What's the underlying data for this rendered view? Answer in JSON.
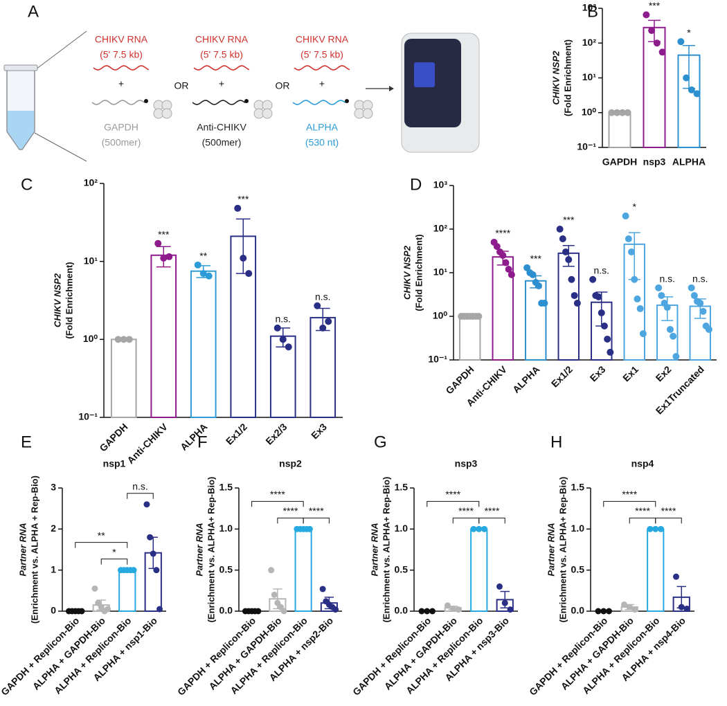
{
  "diagram": {
    "panel": "A",
    "separators": [
      "OR",
      "OR"
    ],
    "groups": [
      {
        "target": "CHIKV RNA",
        "target_size": "(5' 7.5 kb)",
        "target_color": "#d0312d",
        "plus": "+",
        "probe": "GAPDH",
        "probe_size": "(500mer)",
        "probe_color": "#9a9a9a"
      },
      {
        "target": "CHIKV RNA",
        "target_size": "(5' 7.5 kb)",
        "target_color": "#d0312d",
        "plus": "+",
        "probe": "Anti-CHIKV",
        "probe_size": "(500mer)",
        "probe_color": "#222222"
      },
      {
        "target": "CHIKV RNA",
        "target_size": "(5' 7.5 kb)",
        "target_color": "#d0312d",
        "plus": "+",
        "probe": "ALPHA",
        "probe_size": "(530 nt)",
        "probe_color": "#2b9bd8"
      }
    ]
  },
  "chart_data": [
    {
      "type": "bar",
      "panel": "B",
      "ylabel": [
        "CHIKV NSP2",
        "(Fold Enrichment)"
      ],
      "log_scale": true,
      "categories": [
        "GAPDH",
        "nsp3",
        "ALPHA"
      ],
      "values": [
        1,
        280,
        45
      ],
      "errors": [
        0,
        170,
        40
      ],
      "points": [
        [
          1,
          1,
          1,
          1
        ],
        [
          650,
          230,
          100,
          55
        ],
        [
          110,
          10,
          4.5,
          3.5
        ]
      ],
      "colors": [
        "#a6a6a6",
        "#8e1b8c",
        "#2c8fcf"
      ],
      "significance": [
        null,
        "***",
        "*"
      ],
      "ylim": [
        0.1,
        1000
      ],
      "yticks": [
        {
          "value": 0.1,
          "label": "10⁻¹"
        },
        {
          "value": 1,
          "label": "10⁰"
        },
        {
          "value": 10,
          "label": "10¹"
        },
        {
          "value": 100,
          "label": "10²"
        },
        {
          "value": 1000,
          "label": "10³"
        }
      ]
    },
    {
      "type": "bar",
      "panel": "C",
      "ylabel": [
        "CHIKV NSP2",
        "(Fold Enrichment)"
      ],
      "log_scale": true,
      "categories": [
        "GAPDH",
        "Anti-CHIKV",
        "ALPHA",
        "Ex1/2",
        "Ex2/3",
        "Ex3"
      ],
      "values": [
        1,
        12,
        7.5,
        21,
        1.1,
        1.9
      ],
      "errors": [
        0,
        3.5,
        1.3,
        14,
        0.3,
        0.6
      ],
      "points": [
        [
          1,
          1,
          1
        ],
        [
          17,
          11,
          11.5
        ],
        [
          9,
          7,
          6.5
        ],
        [
          48,
          11,
          7
        ],
        [
          1.4,
          1.0,
          0.8
        ],
        [
          2.7,
          1.4,
          1.7
        ]
      ],
      "colors": [
        "#a6a6a6",
        "#8e1b8c",
        "#2c9bd8",
        "#2a2f86",
        "#2a2f86",
        "#2a2f86"
      ],
      "significance": [
        null,
        "***",
        "**",
        "***",
        "n.s.",
        "n.s."
      ],
      "ylim": [
        0.1,
        100
      ],
      "yticks": [
        {
          "value": 0.1,
          "label": "10⁻¹"
        },
        {
          "value": 1,
          "label": "10⁰"
        },
        {
          "value": 10,
          "label": "10¹"
        },
        {
          "value": 100,
          "label": "10²"
        }
      ]
    },
    {
      "type": "bar",
      "panel": "D",
      "ylabel": [
        "CHIKV NSP2",
        "(Fold Enrichment)"
      ],
      "log_scale": true,
      "categories": [
        "GAPDH",
        "Anti-CHIKV",
        "ALPHA",
        "Ex1/2",
        "Ex3",
        "Ex1",
        "Ex2",
        "Ex1Truncated"
      ],
      "values": [
        1,
        23,
        6.5,
        28,
        2.1,
        45,
        1.8,
        1.7
      ],
      "errors": [
        0,
        8,
        2,
        14,
        1.5,
        38,
        1.0,
        0.8
      ],
      "points": [
        [
          1,
          1,
          1,
          1,
          1,
          1,
          1
        ],
        [
          50,
          40,
          30,
          25,
          17,
          12,
          9
        ],
        [
          13,
          10,
          9,
          6,
          5,
          2,
          2
        ],
        [
          100,
          60,
          30,
          20,
          7,
          3,
          2
        ],
        [
          7,
          3,
          2.8,
          1.2,
          0.6,
          0.3,
          0.15
        ],
        [
          200,
          60,
          30,
          7,
          2.5,
          1.5,
          0.4
        ],
        [
          4.5,
          3,
          2,
          1.6,
          0.5,
          0.35,
          0.12
        ],
        [
          4.5,
          3,
          2.2,
          2,
          1.3,
          0.6,
          0.5
        ]
      ],
      "colors": [
        "#a6a6a6",
        "#8e1b8c",
        "#2c8fcf",
        "#2a2f86",
        "#2a2f86",
        "#4ea6e0",
        "#4ea6e0",
        "#4ea6e0"
      ],
      "significance": [
        null,
        "****",
        "***",
        "***",
        "n.s.",
        "*",
        "n.s.",
        "n.s."
      ],
      "ylim": [
        0.1,
        1000
      ],
      "yticks": [
        {
          "value": 0.1,
          "label": "10⁻¹"
        },
        {
          "value": 1,
          "label": "10⁰"
        },
        {
          "value": 10,
          "label": "10¹"
        },
        {
          "value": 100,
          "label": "10²"
        },
        {
          "value": 1000,
          "label": "10³"
        }
      ]
    },
    {
      "type": "bar",
      "panel": "E",
      "title": "nsp1",
      "ylabel": [
        "Partner RNA",
        "(Enrichment vs. ALPHA + Rep-Bio)"
      ],
      "log_scale": false,
      "categories": [
        "GAPDH + Replicon-Bio",
        "ALPHA + GAPDH-Bio",
        "ALPHA + Replicon-Bio",
        "ALPHA + nsp1-Bio"
      ],
      "values": [
        0,
        0.15,
        1,
        1.42
      ],
      "errors": [
        0,
        0.12,
        0,
        0.38
      ],
      "points": [
        [
          0,
          0,
          0,
          0,
          0
        ],
        [
          0.55,
          0.2,
          0.1,
          0.0,
          0.05
        ],
        [
          1,
          1,
          1,
          1,
          1
        ],
        [
          2.6,
          1.8,
          1.4,
          1.0,
          0.05
        ]
      ],
      "colors": [
        "#111111",
        "#b5b5b5",
        "#26a9e0",
        "#2a2f86"
      ],
      "brackets": [
        {
          "from": "GAPDH + Replicon-Bio",
          "to": "ALPHA + Replicon-Bio",
          "label": "**"
        },
        {
          "from": "ALPHA + GAPDH-Bio",
          "to": "ALPHA + Replicon-Bio",
          "label": "*"
        },
        {
          "from": "ALPHA + Replicon-Bio",
          "to": "ALPHA + nsp1-Bio",
          "label": "n.s."
        }
      ],
      "ylim": [
        0,
        3
      ],
      "yticks": [
        0,
        1,
        2,
        3
      ]
    },
    {
      "type": "bar",
      "panel": "F",
      "title": "nsp2",
      "ylabel": [
        "Partner RNA",
        "(Enrichment vs. ALPHA+ Rep-Bio)"
      ],
      "log_scale": false,
      "categories": [
        "GAPDH + Replicon-Bio",
        "ALPHA + GAPDH-Bio",
        "ALPHA + Replicon-Bio",
        "ALPHA + nsp2-Bio"
      ],
      "values": [
        0,
        0.15,
        1,
        0.1
      ],
      "errors": [
        0,
        0.12,
        0,
        0.07
      ],
      "points": [
        [
          0,
          0,
          0,
          0,
          0
        ],
        [
          0.5,
          0.2,
          0.1,
          0.05,
          0.0
        ],
        [
          1,
          1,
          1,
          1,
          1
        ],
        [
          0.27,
          0.12,
          0.08,
          0.05,
          0.02
        ]
      ],
      "colors": [
        "#111111",
        "#b5b5b5",
        "#26a9e0",
        "#2a2f86"
      ],
      "brackets": [
        {
          "from": "GAPDH + Replicon-Bio",
          "to": "ALPHA + Replicon-Bio",
          "label": "****"
        },
        {
          "from": "ALPHA + GAPDH-Bio",
          "to": "ALPHA + Replicon-Bio",
          "label": "****"
        },
        {
          "from": "ALPHA + Replicon-Bio",
          "to": "ALPHA + nsp2-Bio",
          "label": "****"
        }
      ],
      "ylim": [
        0,
        1.5
      ],
      "yticks": [
        {
          "value": 0,
          "label": "0.0"
        },
        {
          "value": 0.5,
          "label": "0.5"
        },
        {
          "value": 1,
          "label": "1.0"
        },
        {
          "value": 1.5,
          "label": "1.5"
        }
      ]
    },
    {
      "type": "bar",
      "panel": "G",
      "title": "nsp3",
      "ylabel": [
        "Partner RNA",
        "(Enrichment vs. ALPHA+ Rep-Bio)"
      ],
      "log_scale": false,
      "categories": [
        "GAPDH + Replicon-Bio",
        "ALPHA + GAPDH-Bio",
        "ALPHA + Replicon-Bio",
        "ALPHA + nsp3-Bio"
      ],
      "values": [
        0,
        0.04,
        1,
        0.14
      ],
      "errors": [
        0,
        0.02,
        0,
        0.1
      ],
      "points": [
        [
          0,
          0,
          0
        ],
        [
          0.07,
          0.03,
          0.02
        ],
        [
          1,
          1,
          1
        ],
        [
          0.3,
          0.1,
          0.02
        ]
      ],
      "colors": [
        "#111111",
        "#b5b5b5",
        "#26a9e0",
        "#2a2f86"
      ],
      "brackets": [
        {
          "from": "GAPDH + Replicon-Bio",
          "to": "ALPHA + Replicon-Bio",
          "label": "****"
        },
        {
          "from": "ALPHA + GAPDH-Bio",
          "to": "ALPHA + Replicon-Bio",
          "label": "****"
        },
        {
          "from": "ALPHA + Replicon-Bio",
          "to": "ALPHA + nsp3-Bio",
          "label": "****"
        }
      ],
      "ylim": [
        0,
        1.5
      ],
      "yticks": [
        {
          "value": 0,
          "label": "0.0"
        },
        {
          "value": 0.5,
          "label": "0.5"
        },
        {
          "value": 1,
          "label": "1.0"
        },
        {
          "value": 1.5,
          "label": "1.5"
        }
      ]
    },
    {
      "type": "bar",
      "panel": "H",
      "title": "nsp4",
      "ylabel": [
        "Partner RNA",
        "(Enrichment vs. ALPHA+ Rep-Bio)"
      ],
      "log_scale": false,
      "categories": [
        "GAPDH + Replicon-Bio",
        "ALPHA + GAPDH-Bio",
        "ALPHA + Replicon-Bio",
        "ALPHA + nsp4-Bio"
      ],
      "values": [
        0,
        0.05,
        1,
        0.17
      ],
      "errors": [
        0,
        0.03,
        0,
        0.13
      ],
      "points": [
        [
          0,
          0,
          0
        ],
        [
          0.08,
          0.05,
          0.02
        ],
        [
          1,
          1,
          1
        ],
        [
          0.42,
          0.05,
          0.03
        ]
      ],
      "colors": [
        "#111111",
        "#b5b5b5",
        "#26a9e0",
        "#2a2f86"
      ],
      "brackets": [
        {
          "from": "GAPDH + Replicon-Bio",
          "to": "ALPHA + Replicon-Bio",
          "label": "****"
        },
        {
          "from": "ALPHA + GAPDH-Bio",
          "to": "ALPHA + Replicon-Bio",
          "label": "****"
        },
        {
          "from": "ALPHA + Replicon-Bio",
          "to": "ALPHA + nsp4-Bio",
          "label": "****"
        }
      ],
      "ylim": [
        0,
        1.5
      ],
      "yticks": [
        {
          "value": 0,
          "label": "0.0"
        },
        {
          "value": 0.5,
          "label": "0.5"
        },
        {
          "value": 1,
          "label": "1.0"
        },
        {
          "value": 1.5,
          "label": "1.5"
        }
      ]
    }
  ]
}
